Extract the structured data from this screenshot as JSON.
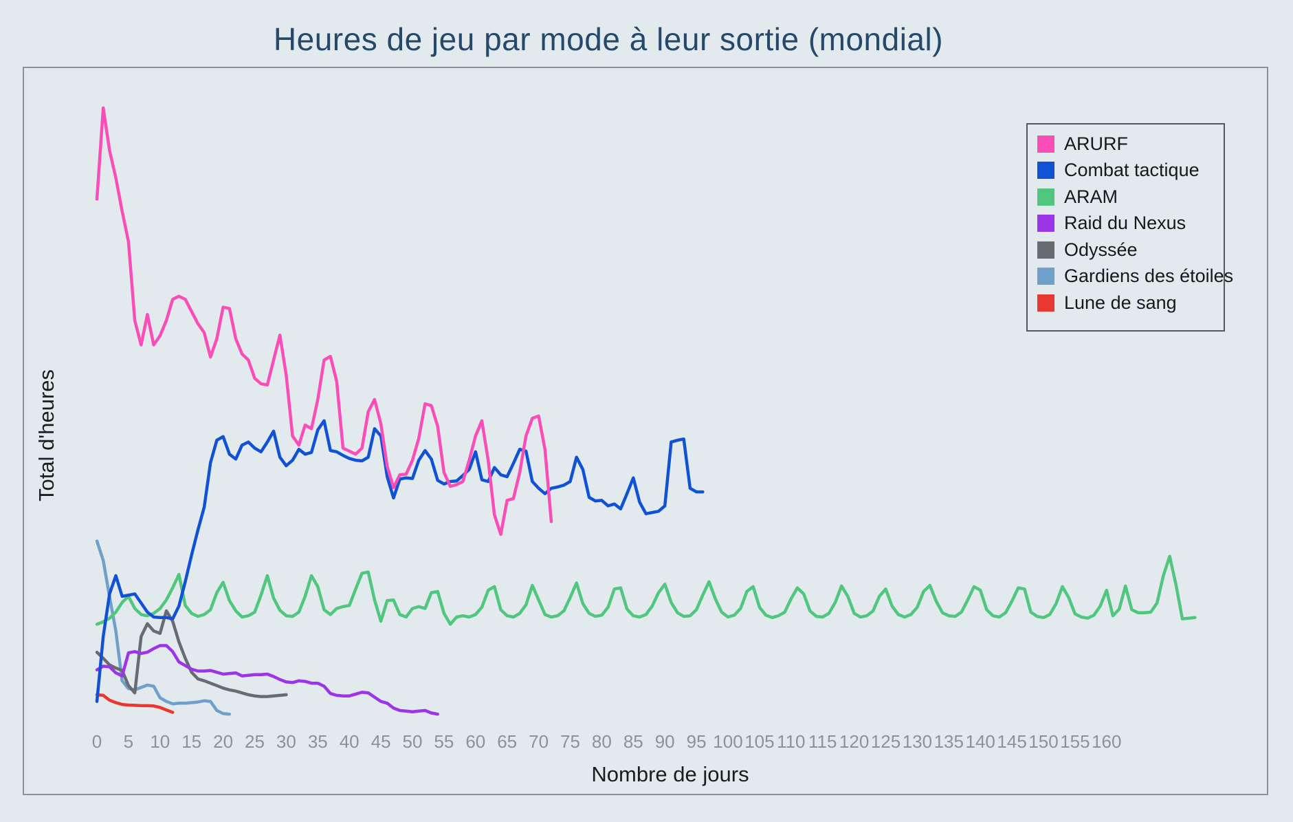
{
  "page": {
    "background": "#e3eaed",
    "frame_border": "#8a9298",
    "legend_border": "#54585d"
  },
  "title": "Heures de jeu par mode à leur sortie (mondial)",
  "axes": {
    "x_label": "Nombre de jours",
    "y_label": "Total d'heures",
    "x_ticks": [
      0,
      5,
      10,
      15,
      20,
      25,
      30,
      35,
      40,
      45,
      50,
      55,
      60,
      65,
      70,
      75,
      80,
      85,
      90,
      95,
      100,
      105,
      110,
      115,
      120,
      125,
      130,
      135,
      140,
      145,
      150,
      155,
      160
    ],
    "y_ticks": []
  },
  "legend": {
    "position": "upper right",
    "items": [
      {
        "label": "ARURF",
        "color": "#f94db8"
      },
      {
        "label": "Combat tactique",
        "color": "#1152d4"
      },
      {
        "label": "ARAM",
        "color": "#50c67e"
      },
      {
        "label": "Raid du Nexus",
        "color": "#9c34e8"
      },
      {
        "label": "Odyssée",
        "color": "#696b72"
      },
      {
        "label": "Gardiens des étoiles",
        "color": "#6fa0ca"
      },
      {
        "label": "Lune de sang",
        "color": "#e73931"
      }
    ]
  },
  "chart_data": {
    "type": "line",
    "title": "Heures de jeu par mode à leur sortie (mondial)",
    "xlabel": "Nombre de jours",
    "ylabel": "Total d'heures",
    "xlim": [
      0,
      185
    ],
    "ylim": [
      0,
      105
    ],
    "grid": false,
    "legend_position": "upper right",
    "note_y_axis": "aucune graduation numérique sur l'axe Y (valeurs relatives, pic ARURF = 100)",
    "series": [
      {
        "name": "ARURF",
        "color": "#f94db8",
        "start_day": 0,
        "values": [
          85,
          100,
          93,
          88.5,
          83,
          78,
          65,
          61,
          66,
          61,
          62.5,
          65,
          68.5,
          69,
          68.5,
          66.5,
          64.5,
          63,
          59,
          62,
          67.2,
          67,
          62,
          59.5,
          58.5,
          55.5,
          54.6,
          54.4,
          58.5,
          62.6,
          56,
          46,
          44.5,
          47.8,
          47.2,
          52,
          58.5,
          59.1,
          55,
          44,
          43.5,
          43,
          44,
          50,
          52,
          48,
          41,
          37.5,
          39.6,
          39.7,
          42,
          45.6,
          51.3,
          51,
          47.6,
          40,
          37.7,
          38,
          38.5,
          42,
          46,
          48.5,
          42,
          33,
          29.8,
          35.4,
          35.7,
          40,
          46,
          48.9,
          49.3,
          43.8,
          31.9
        ]
      },
      {
        "name": "Combat tactique",
        "color": "#1152d4",
        "start_day": 0,
        "values": [
          2.3,
          13,
          20,
          23,
          19.6,
          19.8,
          20,
          18.5,
          17,
          16.2,
          16.1,
          16.1,
          15.9,
          18,
          22,
          26.4,
          30.5,
          34.3,
          41.6,
          45.3,
          45.9,
          43,
          42.2,
          44.5,
          45,
          44,
          43.4,
          45,
          46.8,
          42.5,
          41.1,
          42,
          43.8,
          43,
          43.3,
          47,
          48.5,
          43.6,
          43.4,
          42.8,
          42.3,
          42,
          41.9,
          42.5,
          47.2,
          46,
          39.3,
          35.8,
          38.9,
          39.1,
          39,
          42,
          43.6,
          42.2,
          38.7,
          38.1,
          38.5,
          38.6,
          39.5,
          40.5,
          43.4,
          38.8,
          38.5,
          40.8,
          39.6,
          39.3,
          41.5,
          43.8,
          43.5,
          38.5,
          37.4,
          36.5,
          37.4,
          37.6,
          37.9,
          38.5,
          42.5,
          40.5,
          35.9,
          35.3,
          35.4,
          34.5,
          34.8,
          34,
          36.5,
          39.1,
          35.1,
          33.2,
          33.4,
          33.6,
          34.5,
          45,
          45.3,
          45.5,
          37.4,
          36.8,
          36.8
        ]
      },
      {
        "name": "ARAM",
        "color": "#50c67e",
        "start_day": 0,
        "values": [
          15,
          15.4,
          16,
          17,
          18.6,
          19.6,
          17.6,
          16.6,
          16.4,
          16.8,
          17.6,
          19,
          21,
          23.2,
          18.1,
          16.8,
          16.3,
          16.6,
          17.4,
          20.2,
          21.9,
          18.9,
          17.2,
          16.2,
          16.4,
          17,
          19.8,
          23,
          19.3,
          17.3,
          16.4,
          16.3,
          17,
          19.6,
          23,
          21.2,
          17.4,
          16.6,
          17.6,
          17.9,
          18.1,
          20.8,
          23.4,
          23.6,
          19,
          15.5,
          18.9,
          19,
          16.6,
          16.2,
          17.6,
          17.9,
          17.6,
          20.2,
          20.4,
          16.8,
          15,
          16.2,
          16.4,
          16.2,
          16.6,
          17.8,
          20.6,
          21.2,
          17.4,
          16.4,
          16.2,
          16.8,
          18.2,
          21.4,
          19,
          16.6,
          16.2,
          16.4,
          17.2,
          19.4,
          21.8,
          18.4,
          16.8,
          16.3,
          16.5,
          17.8,
          20.8,
          21,
          17.5,
          16.4,
          16.2,
          16.6,
          18,
          20.2,
          21.6,
          18.6,
          16.9,
          16.3,
          16.4,
          17.4,
          19.8,
          22,
          19.2,
          17,
          16.2,
          16.5,
          17.6,
          20.4,
          21.2,
          17.8,
          16.5,
          16.1,
          16.4,
          17,
          19.2,
          21,
          20,
          17.2,
          16.3,
          16.2,
          16.8,
          18.6,
          21.3,
          19.6,
          16.8,
          16.2,
          16.4,
          17.2,
          19.6,
          20.8,
          18,
          16.6,
          16.2,
          16.6,
          17.8,
          20.4,
          21.4,
          18.8,
          16.9,
          16.4,
          16.3,
          17,
          19,
          21.2,
          20.6,
          17.4,
          16.4,
          16.2,
          16.9,
          18.8,
          21,
          20.8,
          17,
          16.3,
          16.1,
          16.6,
          18.4,
          21.2,
          19.4,
          16.7,
          16.2,
          16,
          16.5,
          18,
          20.6,
          16.4,
          17.5,
          21.3,
          17.4,
          16.9,
          16.9,
          17,
          18.5,
          23,
          26.2,
          21.5,
          15.9,
          16,
          16.1
        ]
      },
      {
        "name": "Raid du Nexus",
        "color": "#9c34e8",
        "start_day": 0,
        "values": [
          7.5,
          8.1,
          8,
          7,
          6.5,
          10.3,
          10.5,
          10.2,
          10.4,
          11,
          11.5,
          11.5,
          10.5,
          8.8,
          8.2,
          7.6,
          7.3,
          7.3,
          7.4,
          7.1,
          6.8,
          6.9,
          7,
          6.5,
          6.6,
          6.7,
          6.7,
          6.8,
          6.4,
          5.9,
          5.5,
          5.4,
          5.7,
          5.6,
          5.3,
          5.3,
          4.8,
          3.6,
          3.3,
          3.2,
          3.2,
          3.5,
          3.8,
          3.7,
          3,
          2.3,
          2,
          1.2,
          0.8,
          0.7,
          0.6,
          0.7,
          0.8,
          0.4,
          0.2
        ]
      },
      {
        "name": "Odyssée",
        "color": "#696b72",
        "start_day": 0,
        "values": [
          10.4,
          9.4,
          8.3,
          7.8,
          7.4,
          4.9,
          3.7,
          13,
          15.1,
          13.9,
          13.5,
          17.2,
          15.5,
          12.1,
          9.4,
          7.1,
          6,
          5.7,
          5.3,
          4.9,
          4.5,
          4.2,
          4,
          3.7,
          3.4,
          3.2,
          3.1,
          3.1,
          3.2,
          3.3,
          3.4
        ]
      },
      {
        "name": "Gardiens des étoiles",
        "color": "#6fa0ca",
        "start_day": 0,
        "values": [
          28.7,
          25.5,
          19.5,
          13.9,
          5.7,
          4.4,
          4.2,
          4.6,
          5,
          4.8,
          2.9,
          2.3,
          1.9,
          2,
          2,
          2.1,
          2.2,
          2.4,
          2.3,
          0.8,
          0.3,
          0.2
        ]
      },
      {
        "name": "Lune de sang",
        "color": "#e73931",
        "start_day": 0,
        "values": [
          3.4,
          3.3,
          2.5,
          2.1,
          1.8,
          1.7,
          1.65,
          1.6,
          1.6,
          1.55,
          1.3,
          0.9,
          0.5
        ]
      }
    ]
  }
}
